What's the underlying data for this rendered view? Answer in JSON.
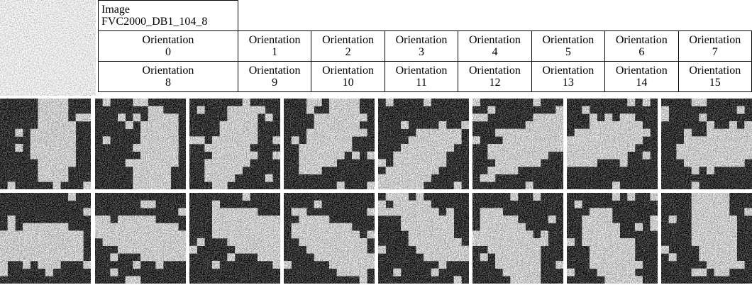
{
  "header": {
    "title": [
      "Image",
      "FVC2000_DB1_104_8"
    ]
  },
  "table": {
    "rows": [
      [
        {
          "text": "Orientation",
          "number": 0
        },
        {
          "text": "Orientation",
          "number": 1
        },
        {
          "text": "Orientation",
          "number": 2
        },
        {
          "text": "Orientation",
          "number": 3
        },
        {
          "text": "Orientation",
          "number": 4
        },
        {
          "text": "Orientation",
          "number": 5
        },
        {
          "text": "Orientation",
          "number": 6
        },
        {
          "text": "Orientation",
          "number": 7
        }
      ],
      [
        {
          "text": "Orientation",
          "number": 8
        },
        {
          "text": "Orientation",
          "number": 9
        },
        {
          "text": "Orientation",
          "number": 10
        },
        {
          "text": "Orientation",
          "number": 11
        },
        {
          "text": "Orientation",
          "number": 12
        },
        {
          "text": "Orientation",
          "number": 13
        },
        {
          "text": "Orientation",
          "number": 14
        },
        {
          "text": "Orientation",
          "number": 15
        }
      ]
    ]
  }
}
